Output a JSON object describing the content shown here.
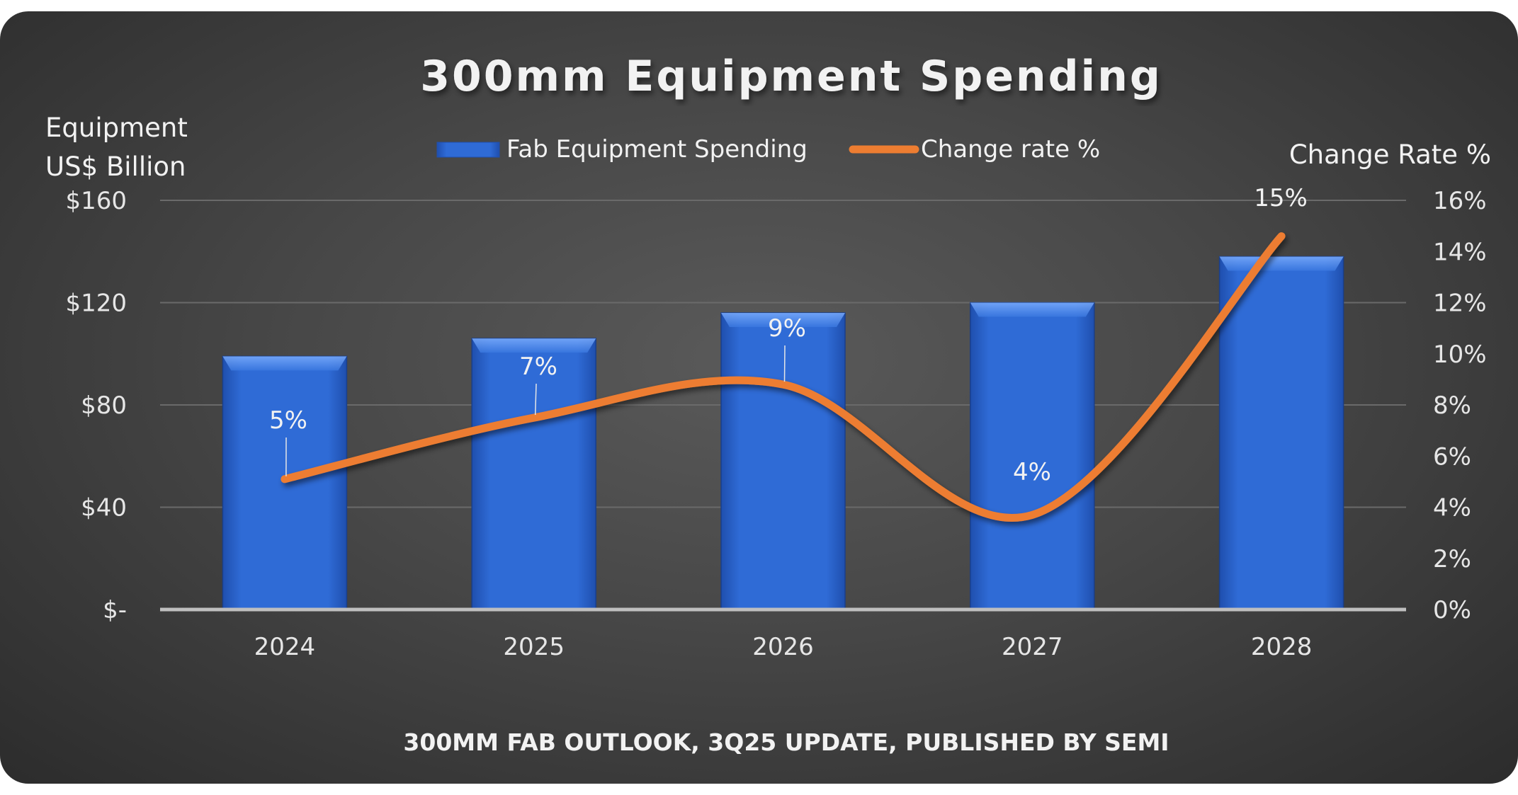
{
  "chart_data": {
    "type": "bar+line",
    "title": "300mm Equipment Spending",
    "footer": "300MM FAB OUTLOOK, 3Q25 UPDATE, PUBLISHED BY SEMI",
    "categories": [
      "2024",
      "2025",
      "2026",
      "2027",
      "2028"
    ],
    "y_left": {
      "label_line1": "Equipment",
      "label_line2": "US$ Billion",
      "range": [
        0,
        160
      ],
      "ticks": [
        "$-",
        "$40",
        "$80",
        "$120",
        "$160"
      ]
    },
    "y_right": {
      "label": "Change Rate %",
      "range": [
        0,
        16
      ],
      "ticks": [
        "0%",
        "2%",
        "4%",
        "6%",
        "8%",
        "10%",
        "12%",
        "14%",
        "16%"
      ]
    },
    "series": [
      {
        "name": "Fab Equipment Spending",
        "type": "bar",
        "axis": "left",
        "color": "#2f6bd6",
        "values": [
          99,
          106,
          116,
          120,
          138
        ]
      },
      {
        "name": "Change rate %",
        "type": "line",
        "axis": "right",
        "color": "#ed7d31",
        "smooth": true,
        "values": [
          5.1,
          7.5,
          8.8,
          3.7,
          14.6
        ],
        "data_labels": [
          "5%",
          "7%",
          "9%",
          "4%",
          "15%"
        ]
      }
    ],
    "grid": true,
    "legend": "top-center"
  }
}
